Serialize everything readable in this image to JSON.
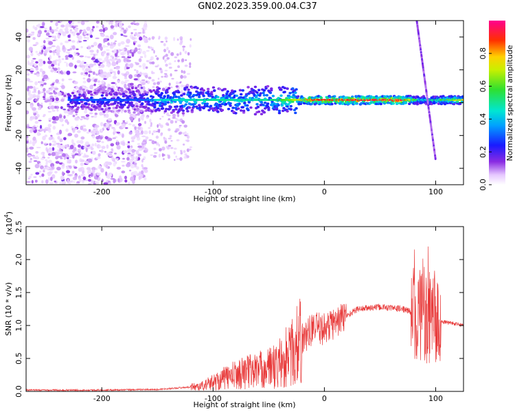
{
  "title": "GN02.2023.359.00.04.C37",
  "colors": {
    "snr_line": "#e83a3a",
    "spectro_low": "#8a2be2",
    "spectro_high": "#ff0000"
  },
  "colorbar": {
    "label": "Normalized spectral amplitude",
    "ticks": [
      0.0,
      0.2,
      0.4,
      0.6,
      0.8
    ],
    "tick_labels": [
      "0.0",
      "0.2",
      "0.4",
      "0.6",
      "0.8"
    ],
    "range": [
      0,
      1
    ],
    "colormap": "rainbow (white → purple → blue → cyan → green → yellow → red → magenta)"
  },
  "chart_data": [
    {
      "type": "heatmap",
      "title": "",
      "xlabel": "Height of straight line (km)",
      "ylabel": "Frequency (Hz)",
      "xlim": [
        -268,
        125
      ],
      "ylim": [
        -50,
        50
      ],
      "xticks": [
        -200,
        -100,
        0,
        100
      ],
      "xtick_labels": [
        "-200",
        "-100",
        "0",
        "100"
      ],
      "yticks": [
        -40,
        -20,
        0,
        20,
        40
      ],
      "ytick_labels": [
        "-40",
        "-20",
        "0",
        "20",
        "40"
      ],
      "features": [
        {
          "name": "scattered noise",
          "x_range": [
            -268,
            -160
          ],
          "f_range": [
            -50,
            50
          ],
          "amplitude": 0.15
        },
        {
          "name": "main band",
          "x_range": [
            -230,
            125
          ],
          "f_center": 1.5,
          "amplitude_profile": [
            {
              "x": -230,
              "a": 0.3
            },
            {
              "x": -160,
              "a": 0.3
            },
            {
              "x": -150,
              "a": 0.45
            },
            {
              "x": -100,
              "a": 0.5
            },
            {
              "x": -50,
              "a": 0.5
            },
            {
              "x": -30,
              "a": 0.65
            },
            {
              "x": -10,
              "a": 0.9
            },
            {
              "x": 70,
              "a": 0.95
            },
            {
              "x": 85,
              "a": 0.45
            },
            {
              "x": 95,
              "a": 0.5
            },
            {
              "x": 125,
              "a": 0.75
            }
          ]
        },
        {
          "name": "diagonal streak",
          "from": [
            83,
            50
          ],
          "to": [
            100,
            -35
          ],
          "amplitude": 0.15
        }
      ]
    },
    {
      "type": "line",
      "title": "",
      "xlabel": "Height of straight line (km)",
      "ylabel": "SNR (10 * v/v)",
      "yscale_label": "(x10",
      "yscale_exponent": "4",
      "yscale_suffix": ")",
      "xlim": [
        -268,
        125
      ],
      "ylim": [
        0,
        2.5
      ],
      "xticks": [
        -200,
        -100,
        0,
        100
      ],
      "xtick_labels": [
        "-200",
        "-100",
        "0",
        "100"
      ],
      "yticks": [
        0.0,
        0.5,
        1.0,
        1.5,
        2.0,
        2.5
      ],
      "ytick_labels": [
        "0.0",
        "0.5",
        "1.0",
        "1.5",
        "2.0",
        "2.5"
      ],
      "series": [
        {
          "values_profile": [
            {
              "x": -268,
              "y": 0.02
            },
            {
              "x": -200,
              "y": 0.02
            },
            {
              "x": -150,
              "y": 0.03
            },
            {
              "x": -110,
              "y": 0.08
            },
            {
              "x": -90,
              "y": 0.2
            },
            {
              "x": -70,
              "y": 0.3
            },
            {
              "x": -50,
              "y": 0.35
            },
            {
              "x": -35,
              "y": 0.45
            },
            {
              "x": -20,
              "y": 0.8
            },
            {
              "x": -10,
              "y": 0.95
            },
            {
              "x": 0,
              "y": 0.95
            },
            {
              "x": 15,
              "y": 1.1
            },
            {
              "x": 30,
              "y": 1.25
            },
            {
              "x": 50,
              "y": 1.28
            },
            {
              "x": 70,
              "y": 1.25
            },
            {
              "x": 80,
              "y": 1.2
            },
            {
              "x": 90,
              "y": 1.1
            },
            {
              "x": 100,
              "y": 1.05
            },
            {
              "x": 110,
              "y": 1.05
            },
            {
              "x": 125,
              "y": 1.0
            }
          ]
        }
      ]
    }
  ]
}
